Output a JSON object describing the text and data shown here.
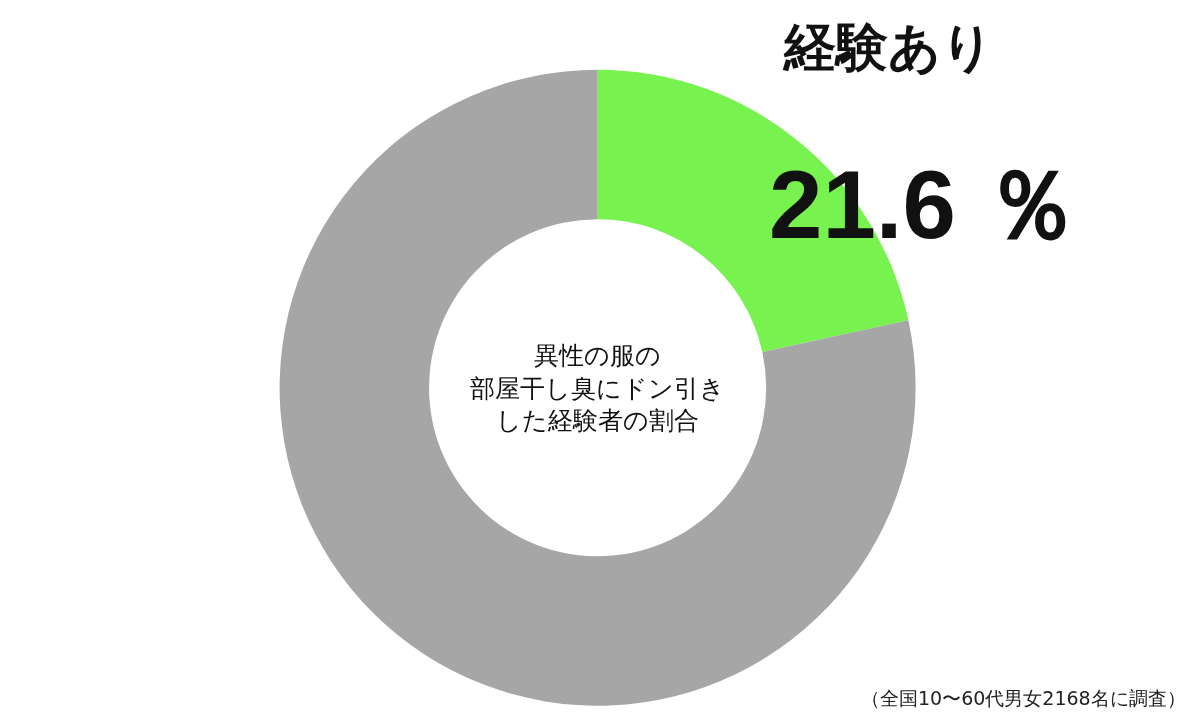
{
  "chart_data": {
    "type": "donut",
    "title": "異性の服の部屋干し臭にドン引きした経験者の割合",
    "categories": [
      "経験あり",
      null
    ],
    "values": [
      21.6,
      78.4
    ],
    "colors": [
      "#77f24e",
      "#a6a6a6"
    ],
    "value_labels": [
      "21.6 ％",
      null
    ],
    "legend": false,
    "annotations": [
      "（全国10〜60代男女2168名に調査）"
    ]
  }
}
